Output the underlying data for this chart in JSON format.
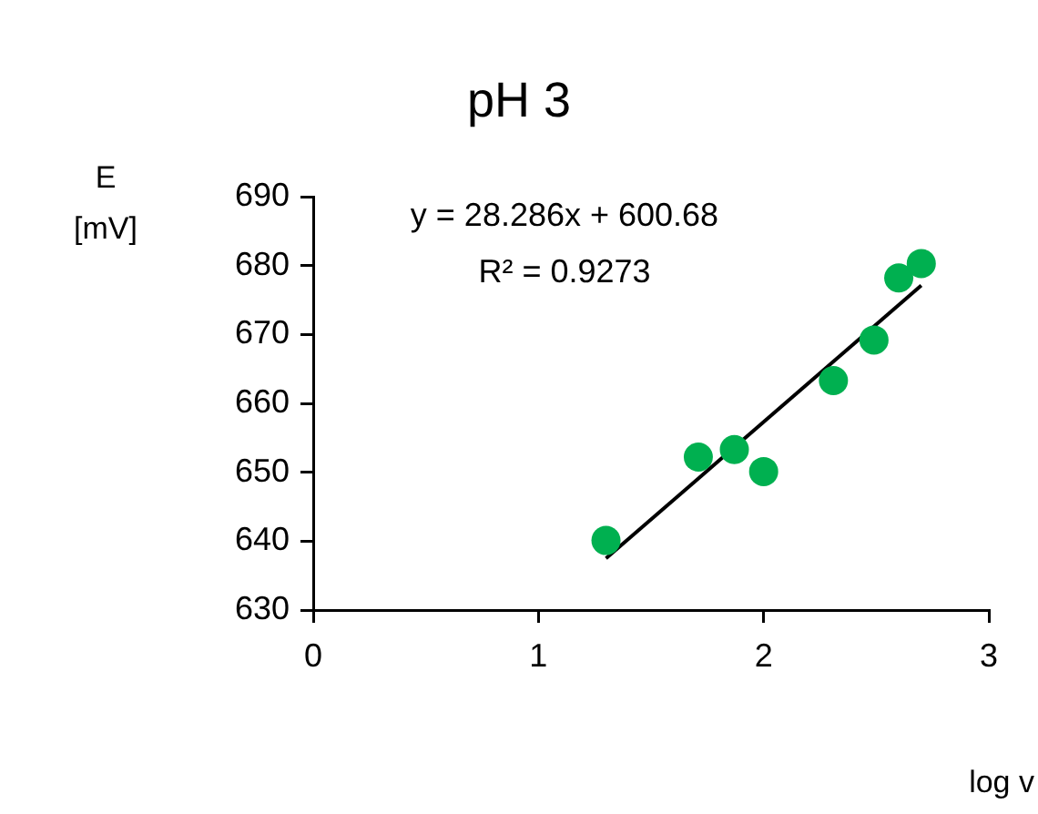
{
  "chart_data": {
    "type": "scatter",
    "title": "pH 3",
    "xlabel": "log v",
    "ylabel": "E\n[mV]",
    "annotations": [
      "y = 28.286x + 600.68",
      "R² = 0.9273"
    ],
    "xlim": [
      0,
      3
    ],
    "xticks": [
      0,
      1,
      2,
      3
    ],
    "ylim": [
      630,
      690
    ],
    "yticks": [
      630,
      640,
      650,
      660,
      670,
      680,
      690
    ],
    "grid": false,
    "legend": false,
    "marker": "circle",
    "series": [
      {
        "color": "#00b050",
        "x": [
          1.3,
          1.71,
          1.87,
          2.0,
          2.31,
          2.49,
          2.6,
          2.7
        ],
        "values": [
          640.1,
          652.2,
          653.3,
          650.1,
          663.3,
          669.2,
          678.2,
          680.3
        ]
      },
      {
        "type": "line",
        "color": "#000000",
        "x": [
          1.3,
          2.7
        ],
        "values": [
          637.5,
          677.1
        ],
        "marker": "none",
        "line_style": "solid"
      }
    ]
  }
}
